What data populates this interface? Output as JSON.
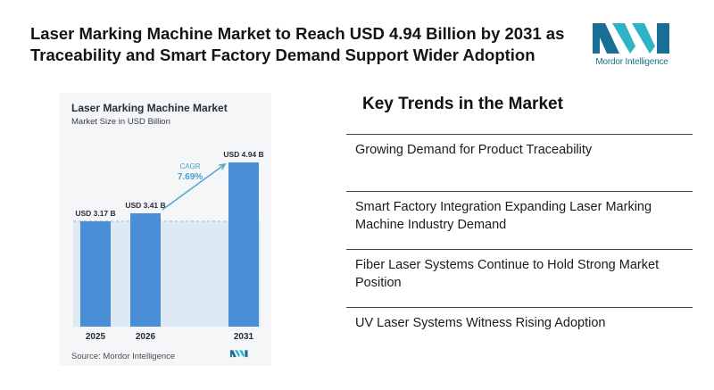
{
  "headline": "Laser Marking Machine Market to Reach USD 4.94 Billion by 2031 as Traceability and Smart Factory Demand Support Wider Adoption",
  "brand": {
    "name": "Mordor Intelligence",
    "icon": "mordor-intelligence-logo",
    "colors": [
      "#1b6e93",
      "#2fb3c9"
    ]
  },
  "chart": {
    "title": "Laser Marking Machine Market",
    "subtitle": "Market Size in USD Billion",
    "source": "Source: Mordor Intelligence",
    "cagr_label": "CAGR",
    "cagr_value": "7.69%"
  },
  "chart_data": {
    "type": "bar",
    "categories": [
      "2025",
      "2026",
      "2031"
    ],
    "values": [
      3.17,
      3.41,
      4.94
    ],
    "data_labels": [
      "USD 3.17 B",
      "USD 3.41 B",
      "USD 4.94 B"
    ],
    "title": "Laser Marking Machine Market",
    "ylabel": "Market Size in USD Billion",
    "xlabel": "",
    "ylim": [
      0,
      5.2
    ],
    "annotation": "CAGR 7.69%",
    "grid": false,
    "colors": {
      "bar": "#4a8fd6",
      "reference_fill": "#dde9f3",
      "arrow": "#5ea4cf",
      "cagr_text": "#4a9fd0"
    }
  },
  "trends": {
    "title": "Key Trends in the Market",
    "items": [
      "Growing Demand for Product Traceability",
      "Smart Factory Integration Expanding Laser Marking Machine Industry Demand",
      "Fiber Laser Systems Continue to Hold Strong Market Position",
      "UV Laser Systems Witness Rising Adoption"
    ]
  }
}
